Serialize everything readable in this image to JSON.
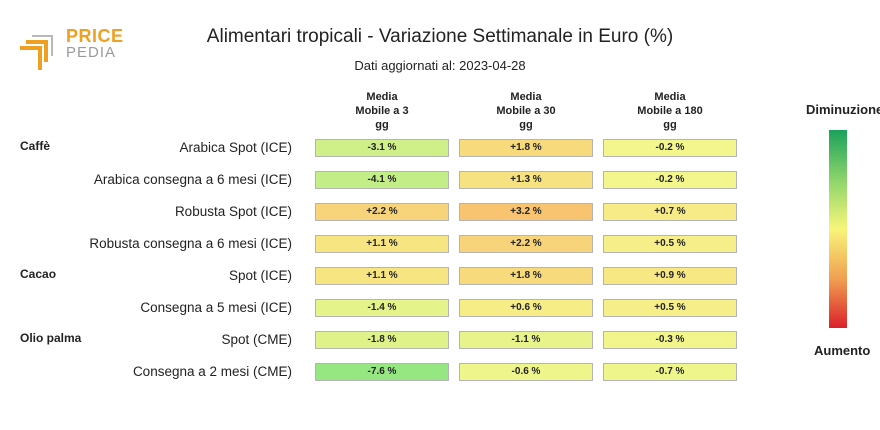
{
  "logo": {
    "line1": "PRICE",
    "line2": "PEDIA"
  },
  "colors": {
    "green_end": "#1aa15a",
    "yellow_mid": "#f8f57a",
    "red_end": "#dc1f2a",
    "logo_orange": "#f0a020"
  },
  "chart_data": {
    "type": "table",
    "title": "Alimentari tropicali - Variazione Settimanale in Euro (%)",
    "subtitle": "Dati aggiornati al: 2023-04-28",
    "columns": [
      [
        "Media",
        "Mobile a 3",
        "gg"
      ],
      [
        "Media",
        "Mobile a 30",
        "gg"
      ],
      [
        "Media",
        "Mobile a 180",
        "gg"
      ]
    ],
    "rows": [
      {
        "group": "Caffè",
        "label": "Arabica Spot (ICE)",
        "values": [
          -3.1,
          1.8,
          -0.2
        ],
        "texts": [
          "-3.1 %",
          "+1.8 %",
          "-0.2 %"
        ]
      },
      {
        "group": "",
        "label": "Arabica consegna a 6 mesi (ICE)",
        "values": [
          -4.1,
          1.3,
          -0.2
        ],
        "texts": [
          "-4.1 %",
          "+1.3 %",
          "-0.2 %"
        ]
      },
      {
        "group": "",
        "label": "Robusta Spot (ICE)",
        "values": [
          2.2,
          3.2,
          0.7
        ],
        "texts": [
          "+2.2 %",
          "+3.2 %",
          "+0.7 %"
        ]
      },
      {
        "group": "",
        "label": "Robusta consegna a 6 mesi (ICE)",
        "values": [
          1.1,
          2.2,
          0.5
        ],
        "texts": [
          "+1.1 %",
          "+2.2 %",
          "+0.5 %"
        ]
      },
      {
        "group": "Cacao",
        "label": "Spot (ICE)",
        "values": [
          1.1,
          1.8,
          0.9
        ],
        "texts": [
          "+1.1 %",
          "+1.8 %",
          "+0.9 %"
        ]
      },
      {
        "group": "",
        "label": "Consegna a 5 mesi (ICE)",
        "values": [
          -1.4,
          0.6,
          0.5
        ],
        "texts": [
          "-1.4 %",
          "+0.6 %",
          "+0.5 %"
        ]
      },
      {
        "group": "Olio palma",
        "label": "Spot (CME)",
        "values": [
          -1.8,
          -1.1,
          -0.3
        ],
        "texts": [
          "-1.8 %",
          "-1.1 %",
          "-0.3 %"
        ]
      },
      {
        "group": "",
        "label": "Consegna a 2 mesi (CME)",
        "values": [
          -7.6,
          -0.6,
          -0.7
        ],
        "texts": [
          "-7.6 %",
          "-0.6 %",
          "-0.7 %"
        ]
      }
    ],
    "legend": {
      "top": "Diminuzione",
      "bottom": "Aumento"
    }
  }
}
